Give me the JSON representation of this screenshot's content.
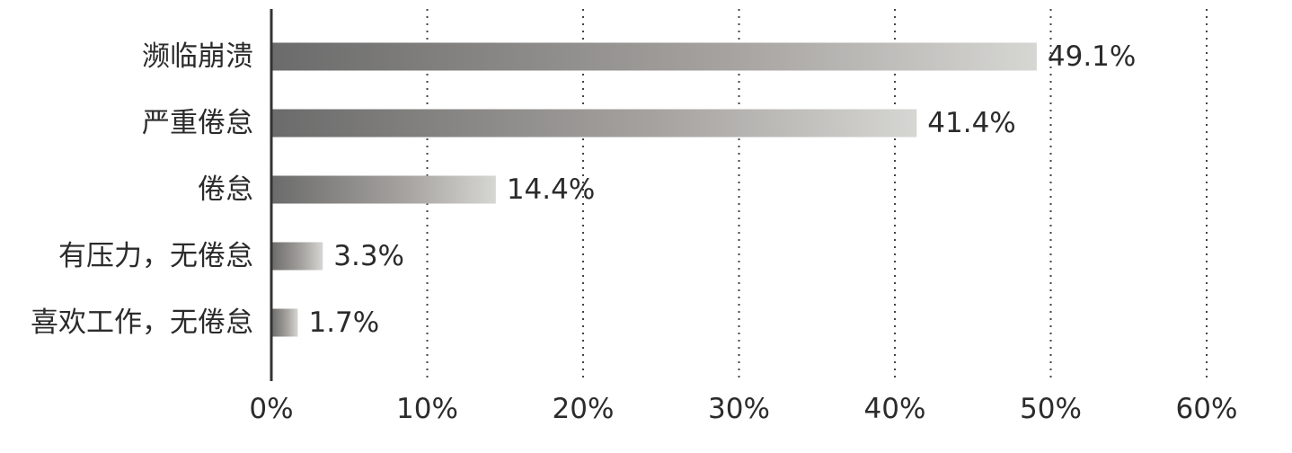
{
  "chart_data": {
    "type": "bar",
    "orientation": "horizontal",
    "categories": [
      "濒临崩溃",
      "严重倦怠",
      "倦怠",
      "有压力，无倦怠",
      "喜欢工作，无倦怠"
    ],
    "values": [
      49.1,
      41.4,
      14.4,
      3.3,
      1.7
    ],
    "value_labels": [
      "49.1%",
      "41.4%",
      "14.4%",
      "3.3%",
      "1.7%"
    ],
    "xlim": [
      0,
      60
    ],
    "xticks": [
      0,
      10,
      20,
      30,
      40,
      50,
      60
    ],
    "xtick_labels": [
      "0%",
      "10%",
      "20%",
      "30%",
      "40%",
      "50%",
      "60%"
    ],
    "title": "",
    "xlabel": "",
    "ylabel": "",
    "grid": "vertical dotted",
    "legend": "none",
    "colors": {
      "bar_start": "#6b6b6b",
      "bar_end": "#d6d6d3",
      "axis": "#333333",
      "grid": "#444444",
      "text": "#2b2b2b"
    }
  }
}
